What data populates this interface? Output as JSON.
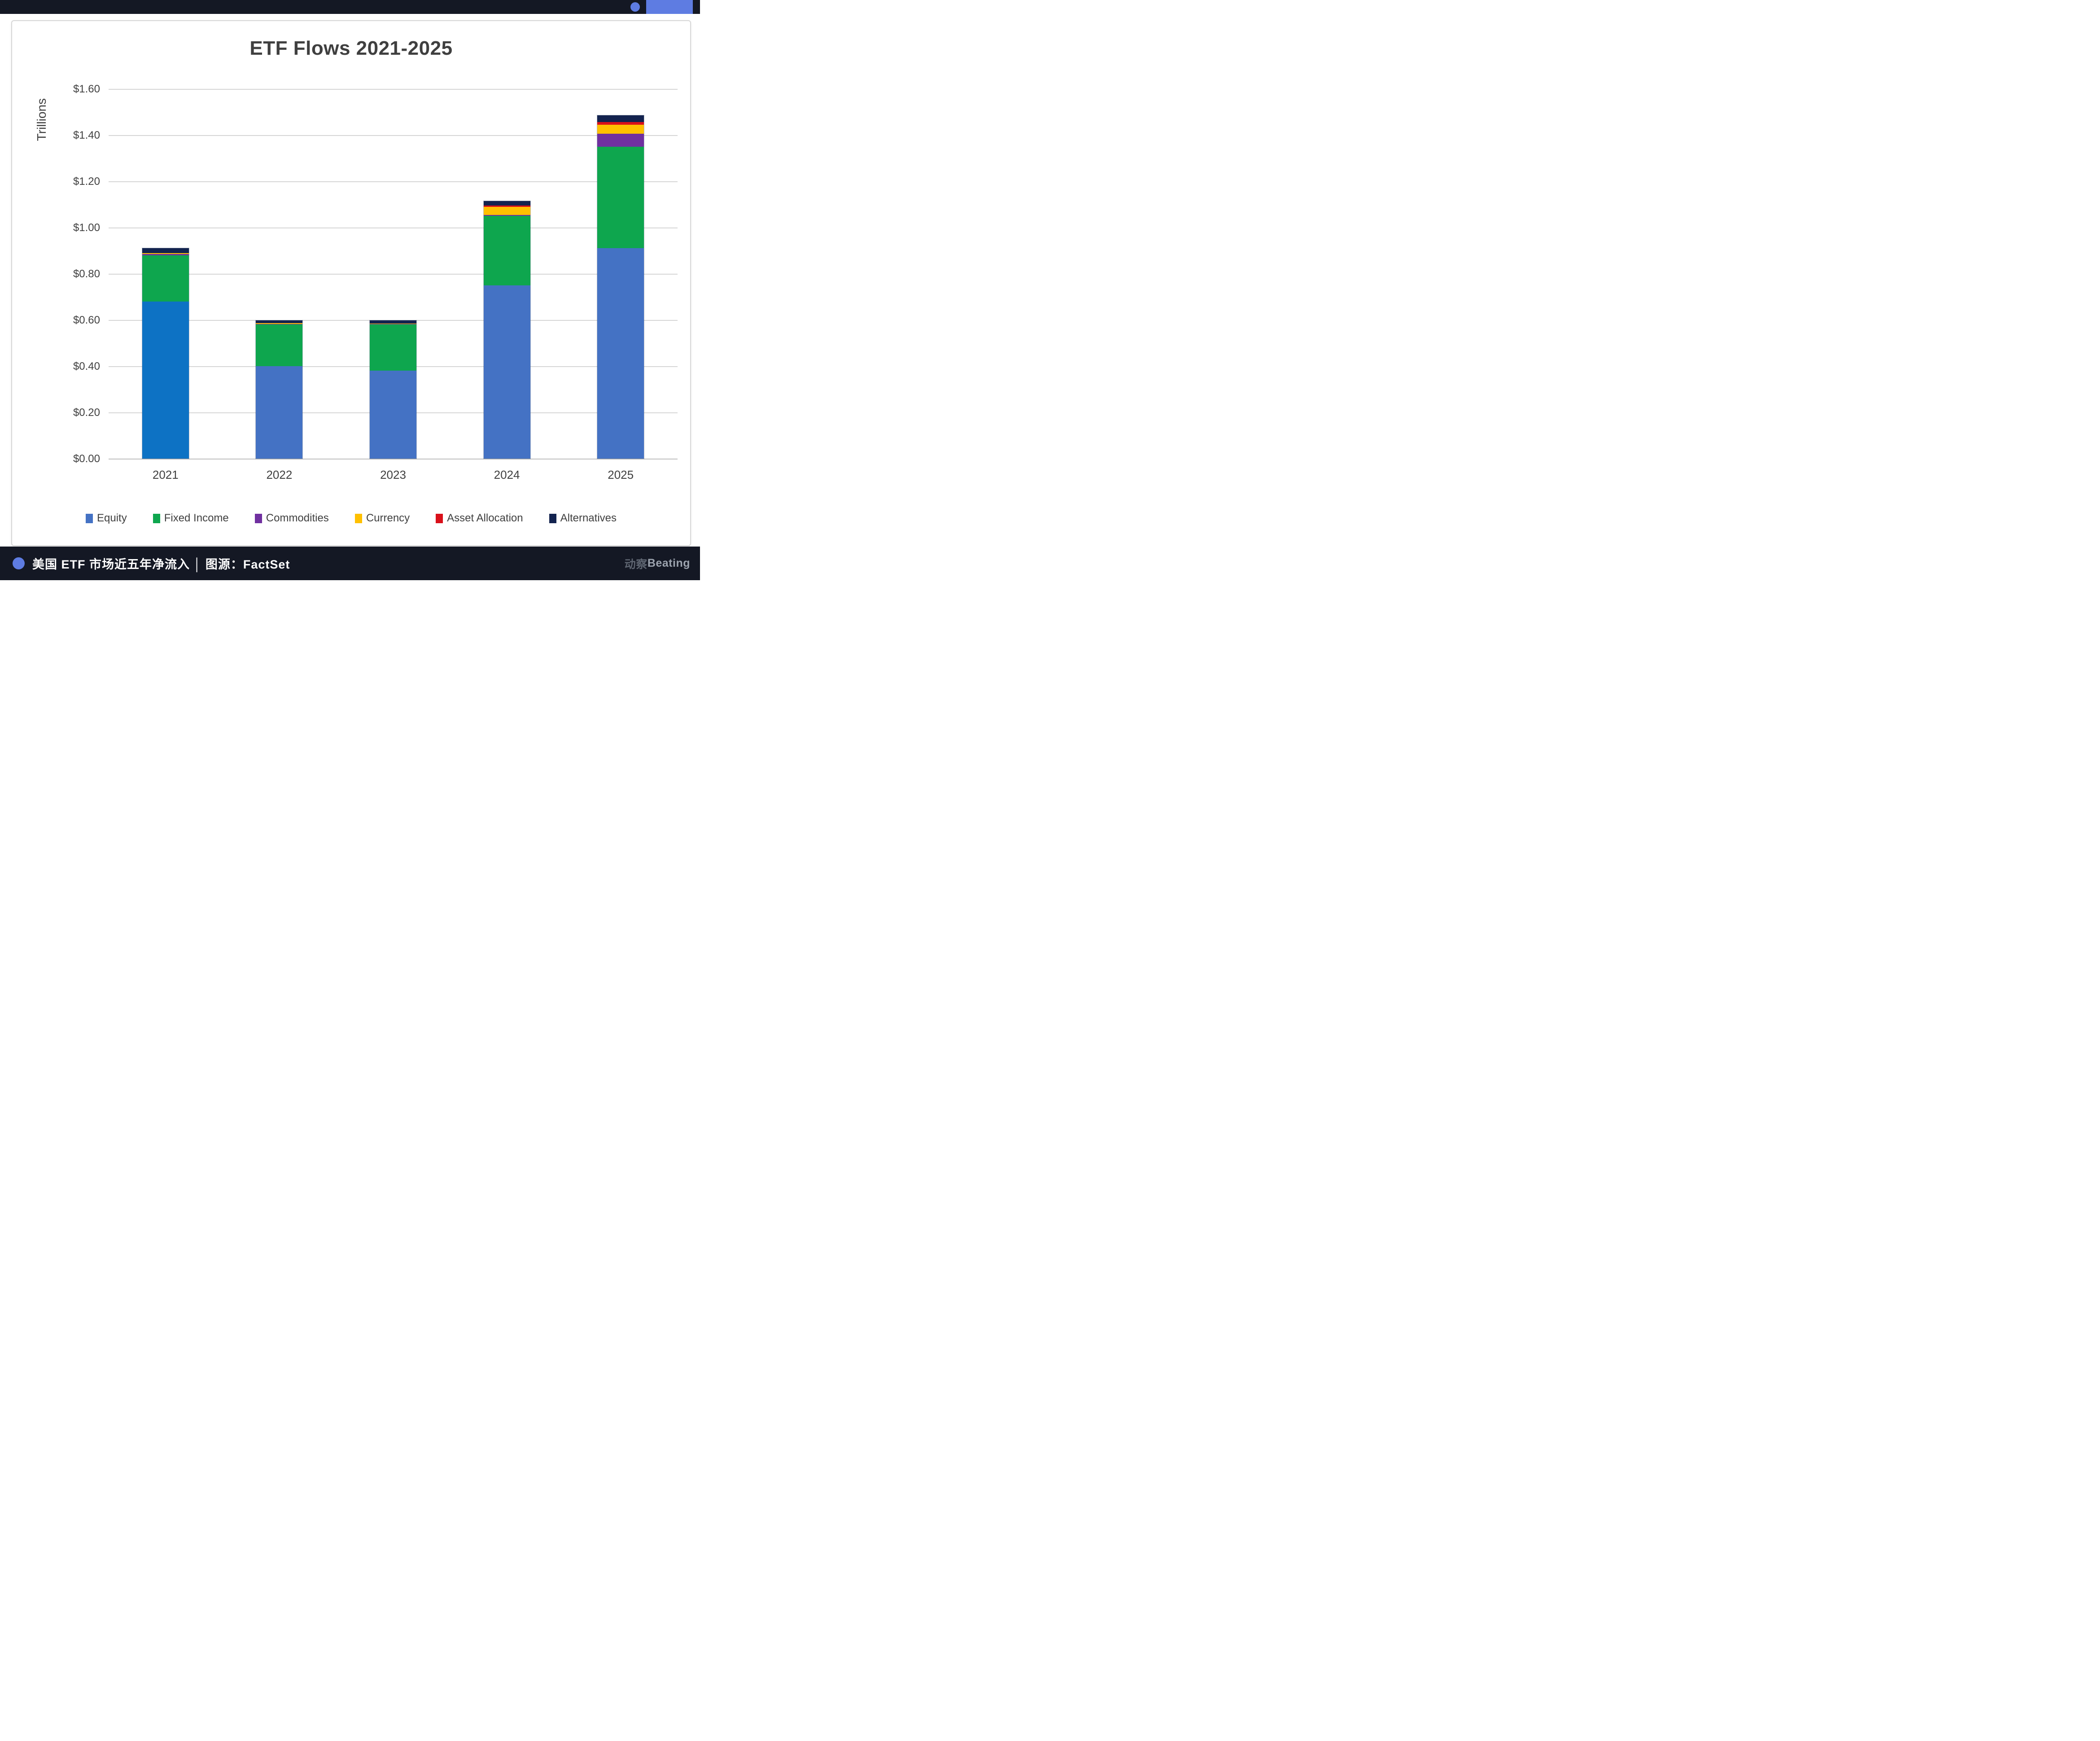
{
  "window": {
    "top_bar_accent_color": "#5e7ce2",
    "bar_background_color": "#141824"
  },
  "chart_data": {
    "type": "bar",
    "stacked": true,
    "title": "ETF Flows 2021-2025",
    "ylabel": "Trillions",
    "xlabel": "",
    "ylim": [
      0,
      1.6
    ],
    "y_tick_step": 0.2,
    "y_ticks": [
      "$1.60",
      "$1.40",
      "$1.20",
      "$1.00",
      "$0.80",
      "$0.60",
      "$0.40",
      "$0.20",
      "$0.00"
    ],
    "grid": "horizontal",
    "legend_position": "bottom",
    "categories": [
      "2021",
      "2022",
      "2023",
      "2024",
      "2025"
    ],
    "series": [
      {
        "name": "Equity",
        "color": "#4472c4",
        "color_overrides": {
          "2021": "#0d72c4"
        },
        "values": [
          0.68,
          0.4,
          0.38,
          0.75,
          0.91
        ]
      },
      {
        "name": "Fixed Income",
        "color": "#0ea64e",
        "values": [
          0.2,
          0.18,
          0.2,
          0.3,
          0.44
        ]
      },
      {
        "name": "Commodities",
        "color": "#7030a0",
        "values": [
          0.005,
          0.003,
          0.002,
          0.005,
          0.055
        ]
      },
      {
        "name": "Currency",
        "color": "#ffc000",
        "values": [
          0.005,
          0.003,
          0.003,
          0.035,
          0.04
        ]
      },
      {
        "name": "Asset Allocation",
        "color": "#d9101a",
        "values": [
          0.0,
          0.0,
          0.0,
          0.005,
          0.012
        ]
      },
      {
        "name": "Alternatives",
        "color": "#13234f",
        "values": [
          0.02,
          0.012,
          0.013,
          0.02,
          0.028
        ]
      }
    ],
    "totals_estimated": [
      0.91,
      0.6,
      0.6,
      1.12,
      1.49
    ]
  },
  "footer": {
    "caption": "美国 ETF 市场近五年净流入 │ 图源：FactSet",
    "logo_cn": "动察",
    "logo_en": "Beating",
    "accent_color": "#5e7ce2"
  }
}
